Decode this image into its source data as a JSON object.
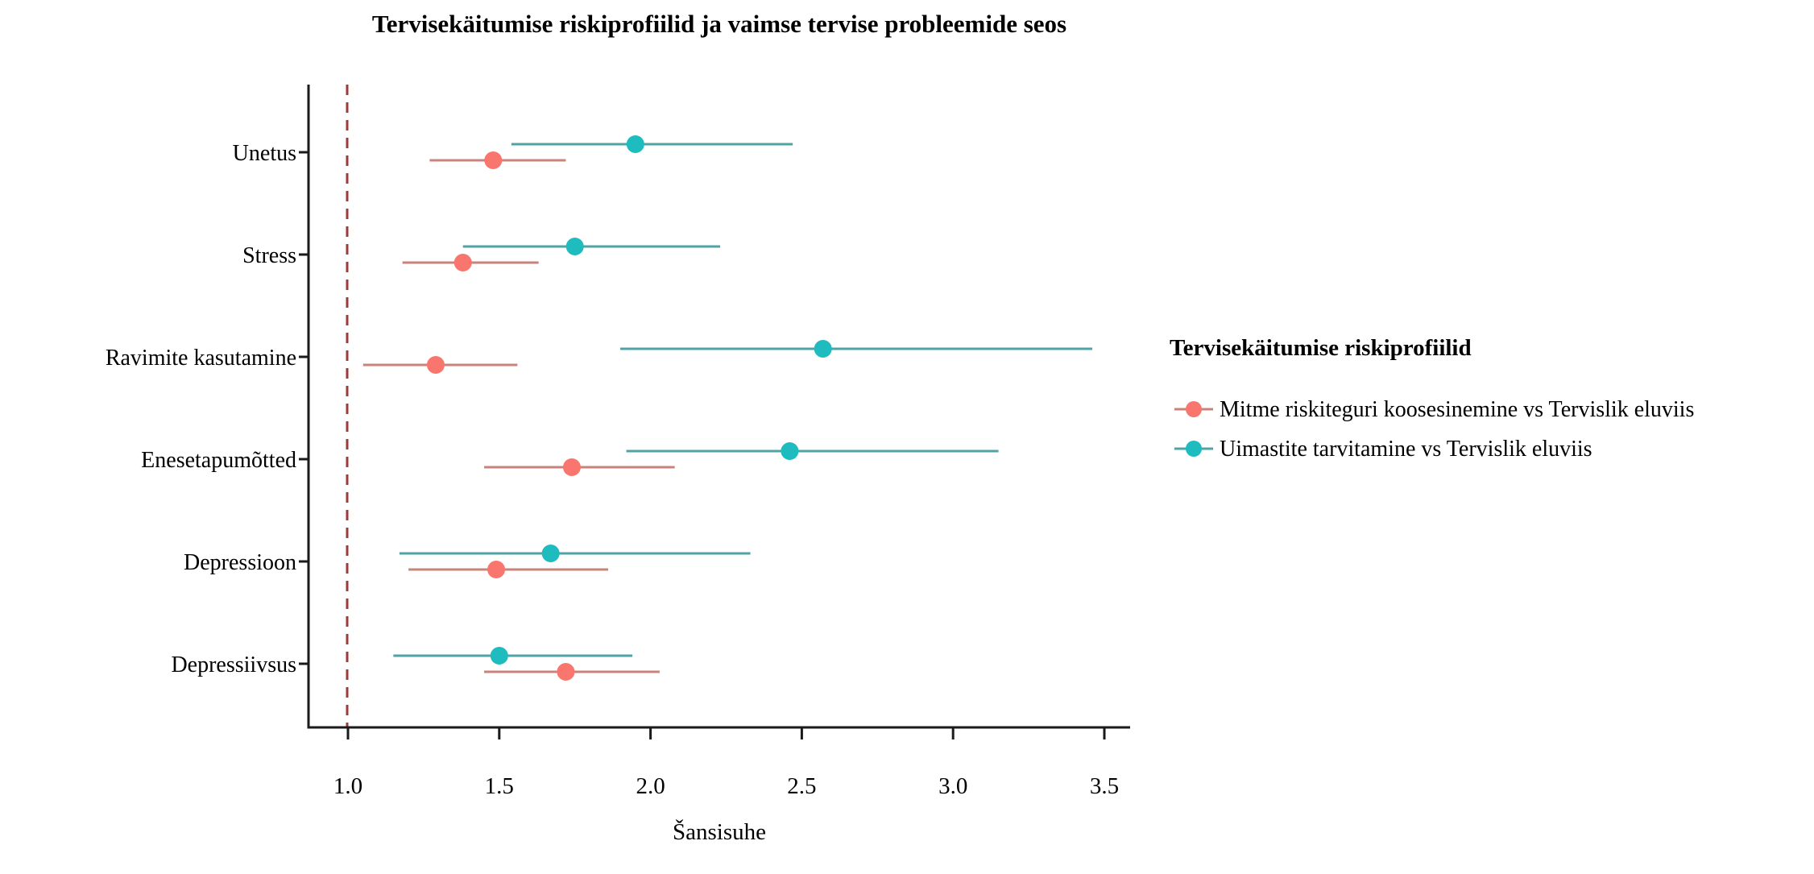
{
  "chart_data": {
    "type": "scatter",
    "subtype": "forest-pointrange",
    "title": "Tervisekäitumise riskiprofiilid ja vaimse tervise probleemide seos",
    "xlabel": "Šansisuhe",
    "legend_title": "Tervisekäitumise riskiprofiilid",
    "legend_position": "right",
    "grid": false,
    "categories": [
      "Unetus",
      "Stress",
      "Ravimite kasutamine",
      "Enesetapumõtted",
      "Depressioon",
      "Depressiivsus"
    ],
    "xticks": [
      "1.0",
      "1.5",
      "2.0",
      "2.5",
      "3.0",
      "3.5"
    ],
    "xlim": [
      0.87,
      3.58
    ],
    "reference_line": 1.0,
    "reference_line_color": "#9E3A37",
    "axis_color": "#1A1A1A",
    "series": [
      {
        "name": "Mitme riskiteguri koosesinemine vs Tervislik eluviis",
        "point_color": "#F8766D",
        "line_color": "#C9837B",
        "values": [
          1.48,
          1.38,
          1.29,
          1.74,
          1.49,
          1.72
        ],
        "ci_low": [
          1.27,
          1.18,
          1.05,
          1.45,
          1.2,
          1.45
        ],
        "ci_high": [
          1.72,
          1.63,
          1.56,
          2.08,
          1.86,
          2.03
        ]
      },
      {
        "name": "Uimastite tarvitamine vs Tervislik eluviis",
        "point_color": "#1EBCBF",
        "line_color": "#4FA3A4",
        "values": [
          1.95,
          1.75,
          2.57,
          2.46,
          1.67,
          1.5
        ],
        "ci_low": [
          1.54,
          1.38,
          1.9,
          1.92,
          1.17,
          1.15
        ],
        "ci_high": [
          2.47,
          2.23,
          3.46,
          3.15,
          2.33,
          1.94
        ]
      }
    ]
  }
}
